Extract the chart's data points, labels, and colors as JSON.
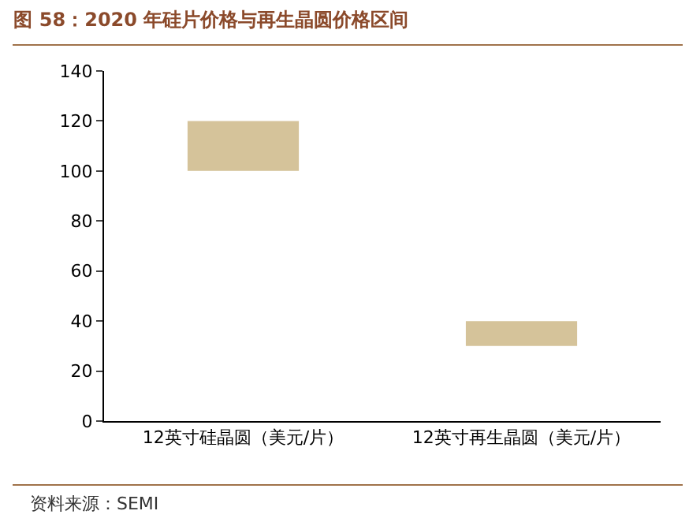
{
  "chart_data": {
    "type": "bar",
    "title": "图 58：2020 年硅片价格与再生晶圆价格区间",
    "categories": [
      "12英寸硅晶圆（美元/片）",
      "12英寸再生晶圆（美元/片）"
    ],
    "values": [
      20,
      10
    ],
    "base": [
      100,
      30
    ],
    "color": "#d5c39a",
    "ylim": [
      0,
      140
    ],
    "yticks": [
      0,
      20,
      40,
      60,
      80,
      100,
      120,
      140
    ],
    "grid": false,
    "annotations": [
      "资料来源：SEMI"
    ]
  }
}
